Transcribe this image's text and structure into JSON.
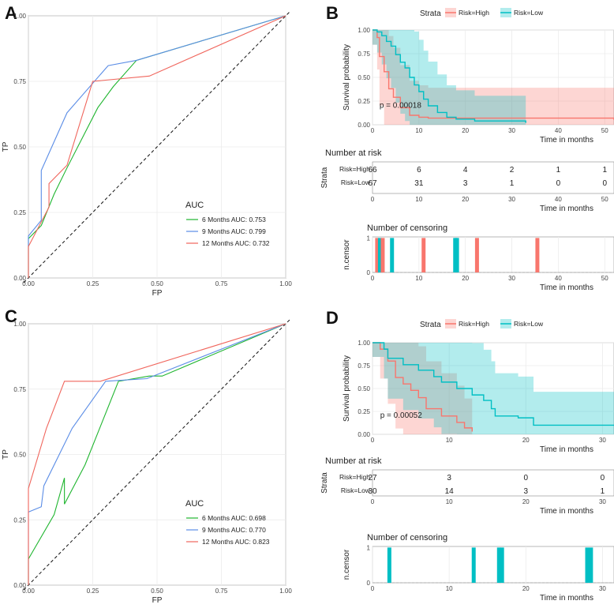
{
  "colors": {
    "high": "#F8766D",
    "low": "#00BFC4",
    "m6": "#1FB52F",
    "m9": "#5B8DE6",
    "m12": "#F0655C"
  },
  "panels": {
    "A": "A",
    "B": "B",
    "C": "C",
    "D": "D"
  },
  "chart_data": [
    {
      "id": "roc_A",
      "type": "line",
      "title": "",
      "xlabel": "FP",
      "ylabel": "TP",
      "xlim": [
        0,
        1
      ],
      "ylim": [
        0,
        1
      ],
      "ticks": [
        "0.00",
        "0.25",
        "0.50",
        "0.75",
        "1.00"
      ],
      "legend_title": "AUC",
      "series": [
        {
          "name": "6 Months AUC: 0.753",
          "key": "m6",
          "points": [
            [
              0,
              0
            ],
            [
              0,
              0.15
            ],
            [
              0.05,
              0.2
            ],
            [
              0.1,
              0.32
            ],
            [
              0.15,
              0.42
            ],
            [
              0.27,
              0.65
            ],
            [
              0.33,
              0.73
            ],
            [
              0.42,
              0.83
            ],
            [
              1,
              1
            ]
          ]
        },
        {
          "name": "9 Months AUC: 0.799",
          "key": "m9",
          "points": [
            [
              0,
              0
            ],
            [
              0,
              0.16
            ],
            [
              0.05,
              0.22
            ],
            [
              0.05,
              0.41
            ],
            [
              0.15,
              0.63
            ],
            [
              0.31,
              0.81
            ],
            [
              0.42,
              0.83
            ],
            [
              1,
              1
            ]
          ]
        },
        {
          "name": "12 Months AUC: 0.732",
          "key": "m12",
          "points": [
            [
              0,
              0
            ],
            [
              0,
              0.12
            ],
            [
              0.08,
              0.27
            ],
            [
              0.08,
              0.36
            ],
            [
              0.15,
              0.43
            ],
            [
              0.25,
              0.75
            ],
            [
              0.47,
              0.77
            ],
            [
              1,
              1
            ]
          ]
        }
      ]
    },
    {
      "id": "km_B",
      "type": "line",
      "title": "",
      "legend_title": "Strata",
      "legend": [
        "Risk=High",
        "Risk=Low"
      ],
      "xlabel": "Time in months",
      "ylabel": "Survival probability",
      "xlim": [
        0,
        52
      ],
      "ylim": [
        0,
        1
      ],
      "xticks": [
        "0",
        "10",
        "20",
        "30",
        "40",
        "50"
      ],
      "yticks": [
        "0.00",
        "0.25",
        "0.50",
        "0.75",
        "1.00"
      ],
      "pvalue": "p = 0.00018",
      "series": [
        {
          "name": "Risk=High",
          "key": "high",
          "points": [
            [
              0,
              1
            ],
            [
              1,
              0.92
            ],
            [
              1.5,
              0.72
            ],
            [
              2.5,
              0.56
            ],
            [
              3.5,
              0.38
            ],
            [
              4.5,
              0.29
            ],
            [
              6,
              0.18
            ],
            [
              8,
              0.1
            ],
            [
              10,
              0.08
            ],
            [
              12,
              0.07
            ],
            [
              52,
              0.05
            ]
          ]
        },
        {
          "name": "Risk=Low",
          "key": "low",
          "points": [
            [
              0,
              1
            ],
            [
              1,
              0.98
            ],
            [
              2,
              0.94
            ],
            [
              3,
              0.88
            ],
            [
              4,
              0.83
            ],
            [
              5,
              0.74
            ],
            [
              6,
              0.66
            ],
            [
              7,
              0.6
            ],
            [
              8,
              0.5
            ],
            [
              9,
              0.42
            ],
            [
              10,
              0.35
            ],
            [
              11,
              0.27
            ],
            [
              12,
              0.2
            ],
            [
              14,
              0.13
            ],
            [
              16,
              0.08
            ],
            [
              18,
              0.06
            ],
            [
              22,
              0.04
            ],
            [
              33,
              0.02
            ]
          ]
        }
      ]
    },
    {
      "id": "risk_B",
      "type": "table",
      "title": "Number at risk",
      "ylabel": "Strata",
      "xlabel": "Time in months",
      "xticks": [
        "0",
        "10",
        "20",
        "30",
        "40",
        "50"
      ],
      "rows": [
        {
          "label": "Risk=High",
          "key": "high",
          "values": [
            "66",
            "6",
            "4",
            "2",
            "1",
            "1"
          ]
        },
        {
          "label": "Risk=Low",
          "key": "low",
          "values": [
            "67",
            "31",
            "3",
            "1",
            "0",
            "0"
          ]
        }
      ]
    },
    {
      "id": "censor_B",
      "type": "bar",
      "title": "Number of censoring",
      "ylabel": "n.censor",
      "xlabel": "Time in months",
      "xticks": [
        "0",
        "10",
        "20",
        "30",
        "40",
        "50"
      ],
      "yticks": [
        "0",
        "1"
      ],
      "bars": [
        {
          "x": 1,
          "key": "high"
        },
        {
          "x": 1.6,
          "key": "low"
        },
        {
          "x": 2.2,
          "key": "high"
        },
        {
          "x": 4.2,
          "key": "low"
        },
        {
          "x": 11,
          "key": "high"
        },
        {
          "x": 17.8,
          "key": "low"
        },
        {
          "x": 18.2,
          "key": "low"
        },
        {
          "x": 22.5,
          "key": "high"
        },
        {
          "x": 35.5,
          "key": "high"
        }
      ]
    },
    {
      "id": "roc_C",
      "type": "line",
      "title": "",
      "xlabel": "FP",
      "ylabel": "TP",
      "xlim": [
        0,
        1
      ],
      "ylim": [
        0,
        1
      ],
      "ticks": [
        "0.00",
        "0.25",
        "0.50",
        "0.75",
        "1.00"
      ],
      "legend_title": "AUC",
      "series": [
        {
          "name": "6 Months AUC: 0.698",
          "key": "m6",
          "points": [
            [
              0,
              0
            ],
            [
              0,
              0.1
            ],
            [
              0.1,
              0.27
            ],
            [
              0.14,
              0.41
            ],
            [
              0.14,
              0.31
            ],
            [
              0.22,
              0.46
            ],
            [
              0.35,
              0.78
            ],
            [
              0.47,
              0.8
            ],
            [
              0.52,
              0.8
            ],
            [
              1,
              1
            ]
          ]
        },
        {
          "name": "9 Months AUC: 0.770",
          "key": "m9",
          "points": [
            [
              0,
              0
            ],
            [
              0,
              0.28
            ],
            [
              0.05,
              0.3
            ],
            [
              0.06,
              0.38
            ],
            [
              0.17,
              0.6
            ],
            [
              0.3,
              0.78
            ],
            [
              0.46,
              0.79
            ],
            [
              1,
              1
            ]
          ]
        },
        {
          "name": "12 Months AUC: 0.823",
          "key": "m12",
          "points": [
            [
              0,
              0
            ],
            [
              0,
              0.37
            ],
            [
              0.07,
              0.6
            ],
            [
              0.14,
              0.78
            ],
            [
              0.28,
              0.78
            ],
            [
              1,
              1
            ]
          ]
        }
      ]
    },
    {
      "id": "km_D",
      "type": "line",
      "title": "",
      "legend_title": "Strata",
      "legend": [
        "Risk=High",
        "Risk=Low"
      ],
      "xlabel": "Time in months",
      "ylabel": "Survival probability",
      "xlim": [
        0,
        31.5
      ],
      "ylim": [
        0,
        1
      ],
      "xticks": [
        "0",
        "10",
        "20",
        "30"
      ],
      "yticks": [
        "0.00",
        "0.25",
        "0.50",
        "0.75",
        "1.00"
      ],
      "pvalue": "p = 0.00052",
      "series": [
        {
          "name": "Risk=High",
          "key": "high",
          "points": [
            [
              0,
              1
            ],
            [
              1,
              0.93
            ],
            [
              2,
              0.8
            ],
            [
              3,
              0.62
            ],
            [
              4,
              0.55
            ],
            [
              5,
              0.48
            ],
            [
              6,
              0.4
            ],
            [
              7,
              0.28
            ],
            [
              9,
              0.2
            ],
            [
              11,
              0.13
            ],
            [
              12,
              0.07
            ],
            [
              13,
              0.03
            ]
          ]
        },
        {
          "name": "Risk=Low",
          "key": "low",
          "points": [
            [
              0,
              1
            ],
            [
              1.5,
              0.93
            ],
            [
              2,
              0.83
            ],
            [
              4,
              0.76
            ],
            [
              6,
              0.7
            ],
            [
              8,
              0.63
            ],
            [
              9,
              0.57
            ],
            [
              11,
              0.5
            ],
            [
              13,
              0.43
            ],
            [
              14.5,
              0.37
            ],
            [
              15.5,
              0.28
            ],
            [
              16,
              0.2
            ],
            [
              19,
              0.18
            ],
            [
              21,
              0.1
            ],
            [
              31.5,
              0.1
            ]
          ]
        }
      ]
    },
    {
      "id": "risk_D",
      "type": "table",
      "title": "Number at risk",
      "ylabel": "Strata",
      "xlabel": "Time in months",
      "xticks": [
        "0",
        "10",
        "20",
        "30"
      ],
      "rows": [
        {
          "label": "Risk=High",
          "key": "high",
          "values": [
            "27",
            "3",
            "0",
            "0"
          ]
        },
        {
          "label": "Risk=Low",
          "key": "low",
          "values": [
            "30",
            "14",
            "3",
            "1"
          ]
        }
      ]
    },
    {
      "id": "censor_D",
      "type": "bar",
      "title": "Number of censoring",
      "ylabel": "n.censor",
      "xlabel": "Time in months",
      "xticks": [
        "0",
        "10",
        "20",
        "30"
      ],
      "yticks": [
        "0",
        "1"
      ],
      "bars": [
        {
          "x": 2.2,
          "key": "low"
        },
        {
          "x": 13.2,
          "key": "low"
        },
        {
          "x": 16.5,
          "key": "low"
        },
        {
          "x": 16.9,
          "key": "low"
        },
        {
          "x": 28,
          "key": "low"
        },
        {
          "x": 28.5,
          "key": "low"
        }
      ]
    }
  ]
}
